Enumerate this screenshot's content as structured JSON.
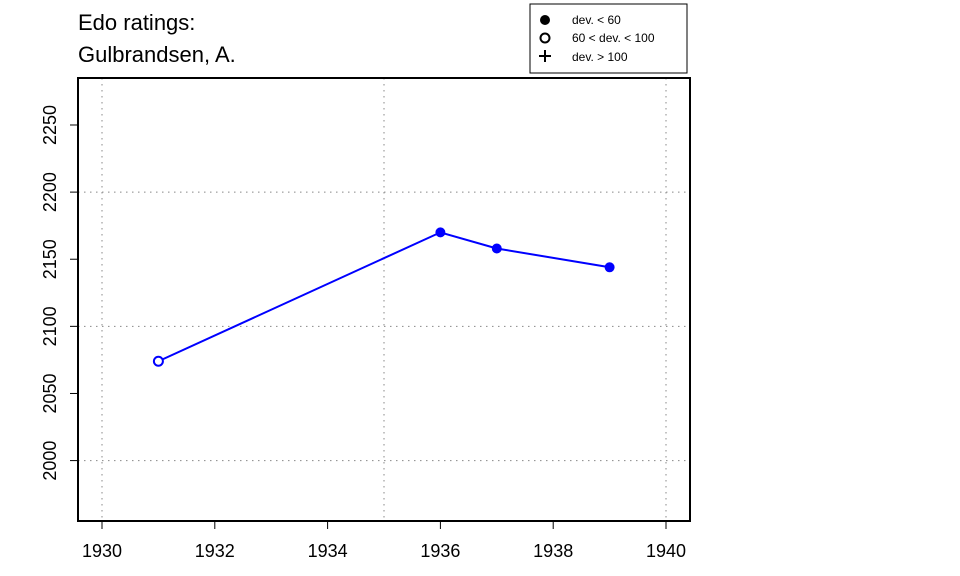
{
  "chart_data": {
    "type": "line",
    "title_lines": [
      "Edo ratings:",
      "Gulbrandsen, A."
    ],
    "xlabel": "",
    "ylabel": "",
    "xlim": [
      1930,
      1940
    ],
    "ylim": [
      1955,
      2285
    ],
    "x_ticks": [
      1930,
      1932,
      1934,
      1936,
      1938,
      1940
    ],
    "y_ticks": [
      2000,
      2050,
      2100,
      2150,
      2200,
      2250
    ],
    "x_grid": [
      1930,
      1935,
      1940
    ],
    "y_grid": [
      2000,
      2100,
      2200
    ],
    "grid": true,
    "legend_position": "top-right",
    "legend": [
      {
        "symbol": "filled-circle",
        "label": "dev. < 60"
      },
      {
        "symbol": "open-circle",
        "label": "60 < dev. < 100"
      },
      {
        "symbol": "plus",
        "label": "dev. > 100"
      }
    ],
    "series": [
      {
        "color": "#0000ff",
        "points": [
          {
            "x": 1931,
            "y": 2074,
            "marker": "open-circle"
          },
          {
            "x": 1936,
            "y": 2170,
            "marker": "filled-circle"
          },
          {
            "x": 1937,
            "y": 2158,
            "marker": "filled-circle"
          },
          {
            "x": 1939,
            "y": 2144,
            "marker": "filled-circle"
          }
        ]
      }
    ]
  }
}
